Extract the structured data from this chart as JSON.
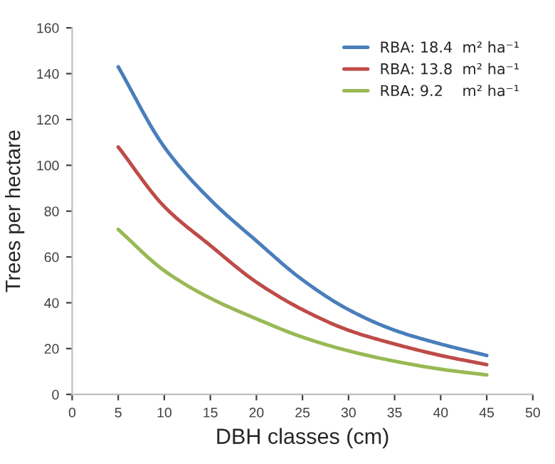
{
  "chart_data": {
    "type": "line",
    "xlabel": "DBH classes (cm)",
    "ylabel": "Trees per hectare",
    "x": [
      5,
      10,
      15,
      20,
      25,
      30,
      35,
      40,
      45
    ],
    "series": [
      {
        "name": "RBA: 18.4  m² ha⁻¹",
        "color": "#4a7ebb",
        "values": [
          143,
          108,
          85,
          67,
          50,
          37,
          28,
          22,
          17
        ]
      },
      {
        "name": "RBA: 13.8  m² ha⁻¹",
        "color": "#be4b48",
        "values": [
          108,
          82,
          65,
          49,
          37,
          28,
          22,
          17,
          13
        ]
      },
      {
        "name": "RBA: 9.2    m² ha⁻¹",
        "color": "#98b954",
        "values": [
          72,
          54,
          42,
          33,
          25,
          19,
          14.5,
          11,
          8.5
        ]
      }
    ],
    "xlim": [
      0,
      50
    ],
    "xticks": [
      0,
      5,
      10,
      15,
      20,
      25,
      30,
      35,
      40,
      45,
      50
    ],
    "ylim": [
      0,
      160
    ],
    "yticks": [
      0,
      20,
      40,
      60,
      80,
      100,
      120,
      140,
      160
    ],
    "grid": false,
    "legend": "top right",
    "marker": "none",
    "line_style": "solid"
  }
}
